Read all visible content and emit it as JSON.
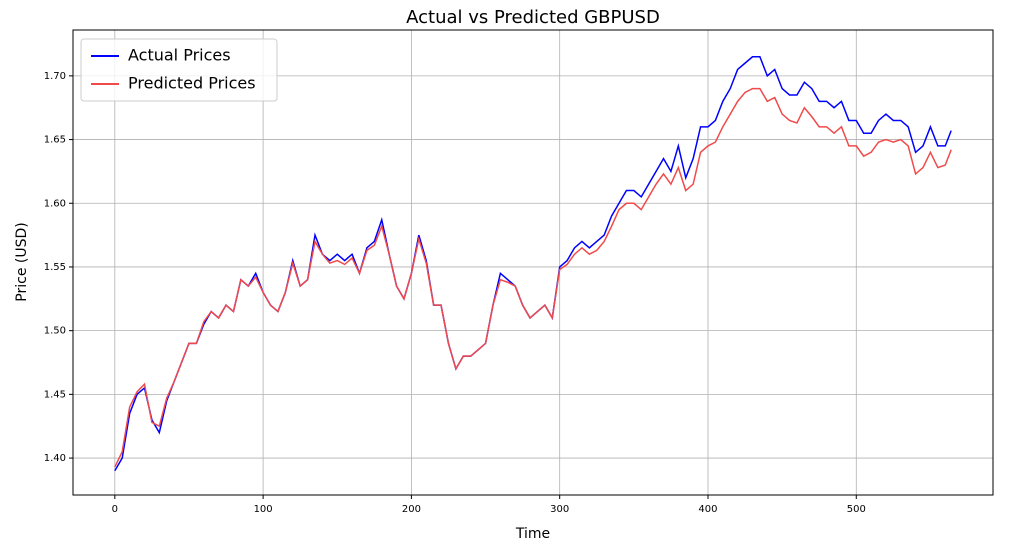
{
  "chart_data": {
    "type": "line",
    "title": "Actual vs Predicted GBPUSD",
    "xlabel": "Time",
    "ylabel": "Price (USD)",
    "x": [
      0,
      5,
      10,
      15,
      20,
      25,
      30,
      35,
      40,
      45,
      50,
      55,
      60,
      65,
      70,
      75,
      80,
      85,
      90,
      95,
      100,
      105,
      110,
      115,
      120,
      125,
      130,
      135,
      140,
      145,
      150,
      155,
      160,
      165,
      170,
      175,
      180,
      185,
      190,
      195,
      200,
      205,
      210,
      215,
      220,
      225,
      230,
      235,
      240,
      245,
      250,
      255,
      260,
      265,
      270,
      275,
      280,
      285,
      290,
      295,
      300,
      305,
      310,
      315,
      320,
      325,
      330,
      335,
      340,
      345,
      350,
      355,
      360,
      365,
      370,
      375,
      380,
      385,
      390,
      395,
      400,
      405,
      410,
      415,
      420,
      425,
      430,
      435,
      440,
      445,
      450,
      455,
      460,
      465,
      470,
      475,
      480,
      485,
      490,
      495,
      500,
      505,
      510,
      515,
      520,
      525,
      530,
      535,
      540,
      545,
      550,
      555,
      560,
      564
    ],
    "series": [
      {
        "name": "Actual Prices",
        "color": "#0000ff",
        "values": [
          1.39,
          1.4,
          1.435,
          1.45,
          1.455,
          1.43,
          1.42,
          1.445,
          1.46,
          1.475,
          1.49,
          1.49,
          1.505,
          1.515,
          1.51,
          1.52,
          1.515,
          1.54,
          1.535,
          1.545,
          1.53,
          1.52,
          1.515,
          1.53,
          1.555,
          1.535,
          1.54,
          1.575,
          1.56,
          1.555,
          1.56,
          1.555,
          1.56,
          1.545,
          1.565,
          1.57,
          1.587,
          1.56,
          1.535,
          1.525,
          1.545,
          1.575,
          1.555,
          1.52,
          1.52,
          1.49,
          1.47,
          1.48,
          1.48,
          1.485,
          1.49,
          1.52,
          1.545,
          1.54,
          1.535,
          1.52,
          1.51,
          1.515,
          1.52,
          1.51,
          1.55,
          1.555,
          1.565,
          1.57,
          1.565,
          1.57,
          1.575,
          1.59,
          1.6,
          1.61,
          1.61,
          1.605,
          1.615,
          1.625,
          1.635,
          1.625,
          1.645,
          1.62,
          1.635,
          1.66,
          1.66,
          1.665,
          1.68,
          1.69,
          1.705,
          1.71,
          1.715,
          1.715,
          1.7,
          1.705,
          1.69,
          1.685,
          1.685,
          1.695,
          1.69,
          1.68,
          1.68,
          1.675,
          1.68,
          1.665,
          1.665,
          1.655,
          1.655,
          1.665,
          1.67,
          1.665,
          1.665,
          1.66,
          1.64,
          1.645,
          1.66,
          1.645,
          1.645,
          1.657
        ]
      },
      {
        "name": "Predicted Prices",
        "color": "#f04a4a",
        "values": [
          1.393,
          1.405,
          1.44,
          1.452,
          1.458,
          1.428,
          1.425,
          1.447,
          1.46,
          1.475,
          1.49,
          1.49,
          1.507,
          1.515,
          1.51,
          1.52,
          1.515,
          1.54,
          1.535,
          1.542,
          1.53,
          1.52,
          1.515,
          1.53,
          1.553,
          1.535,
          1.54,
          1.57,
          1.56,
          1.553,
          1.555,
          1.552,
          1.557,
          1.545,
          1.563,
          1.567,
          1.582,
          1.56,
          1.535,
          1.525,
          1.545,
          1.572,
          1.553,
          1.52,
          1.52,
          1.49,
          1.47,
          1.48,
          1.48,
          1.485,
          1.49,
          1.52,
          1.54,
          1.538,
          1.535,
          1.52,
          1.51,
          1.515,
          1.52,
          1.51,
          1.548,
          1.552,
          1.56,
          1.565,
          1.56,
          1.563,
          1.57,
          1.582,
          1.595,
          1.6,
          1.6,
          1.595,
          1.605,
          1.615,
          1.623,
          1.615,
          1.628,
          1.61,
          1.615,
          1.64,
          1.645,
          1.648,
          1.66,
          1.67,
          1.68,
          1.687,
          1.69,
          1.69,
          1.68,
          1.683,
          1.67,
          1.665,
          1.663,
          1.675,
          1.668,
          1.66,
          1.66,
          1.655,
          1.66,
          1.645,
          1.645,
          1.637,
          1.64,
          1.648,
          1.65,
          1.648,
          1.65,
          1.645,
          1.623,
          1.628,
          1.64,
          1.628,
          1.63,
          1.642
        ]
      }
    ],
    "xlim": [
      -28.2,
      592.2
    ],
    "xticks": [
      0,
      100,
      200,
      300,
      400,
      500
    ],
    "ylim": [
      1.371,
      1.736
    ],
    "yticks": [
      {
        "value": 1.4,
        "label": "1.40"
      },
      {
        "value": 1.45,
        "label": "1.45"
      },
      {
        "value": 1.5,
        "label": "1.50"
      },
      {
        "value": 1.55,
        "label": "1.55"
      },
      {
        "value": 1.6,
        "label": "1.60"
      },
      {
        "value": 1.65,
        "label": "1.65"
      },
      {
        "value": 1.7,
        "label": "1.70"
      }
    ],
    "grid": true,
    "legend": "upper-left"
  }
}
